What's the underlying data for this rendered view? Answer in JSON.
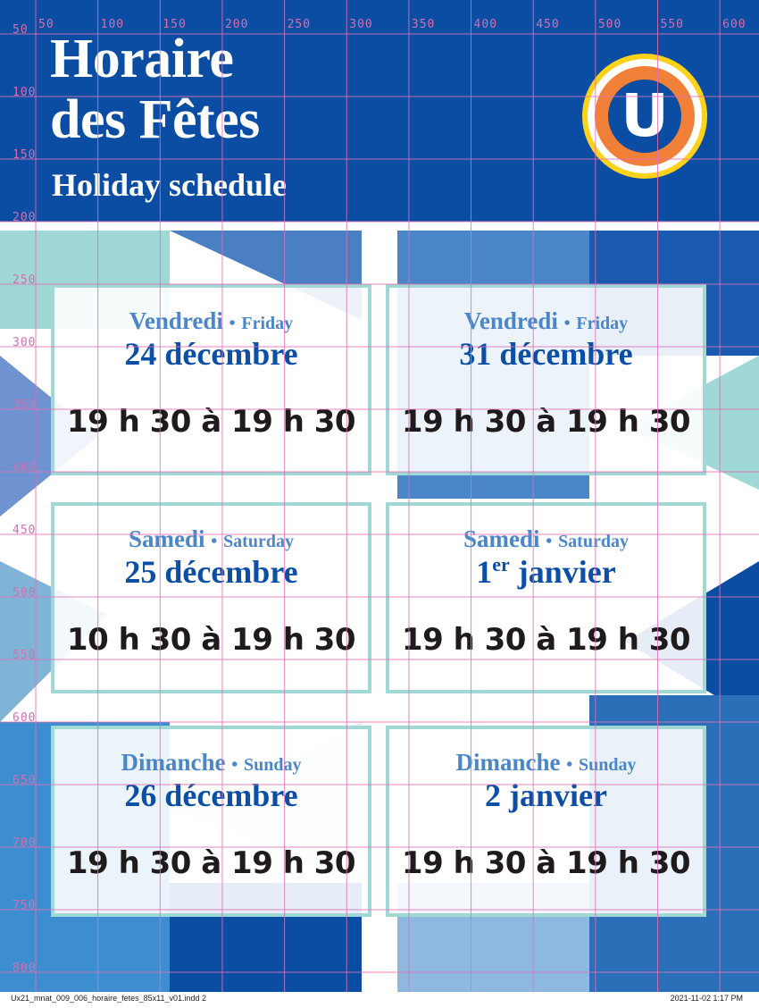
{
  "header": {
    "title_line1": "Horaire",
    "title_line2": "des Fêtes",
    "subtitle": "Holiday schedule",
    "logo_letter": "U"
  },
  "cards": [
    {
      "day_fr": "Vendredi",
      "day_en": "Friday",
      "date": "24 décembre",
      "date_sup": "",
      "time": "19 h 30 à 19 h 30"
    },
    {
      "day_fr": "Vendredi",
      "day_en": "Friday",
      "date": "31 décembre",
      "date_sup": "",
      "time": "19 h 30 à 19 h 30"
    },
    {
      "day_fr": "Samedi",
      "day_en": "Saturday",
      "date": "25 décembre",
      "date_sup": "",
      "time": "10 h 30 à 19 h 30"
    },
    {
      "day_fr": "Samedi",
      "day_en": "Saturday",
      "date_prefix": "1",
      "date_sup": "er",
      "date": " janvier",
      "time": "19 h 30 à 19 h 30"
    },
    {
      "day_fr": "Dimanche",
      "day_en": "Sunday",
      "date": "26 décembre",
      "date_sup": "",
      "time": "19 h 30 à 19 h 30"
    },
    {
      "day_fr": "Dimanche",
      "day_en": "Sunday",
      "date": "2 janvier",
      "date_sup": "",
      "time": "19 h 30 à 19 h 30"
    }
  ],
  "separator": "•",
  "rulers": {
    "top": [
      "50",
      "100",
      "150",
      "200",
      "250",
      "300",
      "350",
      "400",
      "450",
      "500",
      "550",
      "600"
    ],
    "left": [
      "50",
      "100",
      "150",
      "200",
      "250",
      "300",
      "350",
      "400",
      "450",
      "500",
      "550",
      "600",
      "650",
      "700",
      "750",
      "800"
    ]
  },
  "slug": {
    "filename": "Ux21_mnat_009_006_horaire_fetes_85x11_v01.indd  2",
    "timestamp": "2021-11-02   1:17 PM"
  },
  "colors": {
    "header_blue": "#0a4da3",
    "day_blue": "#4a86c8",
    "date_blue": "#0d4ea6",
    "card_border": "#9fd8d5",
    "logo_yellow": "#ffd21a",
    "logo_orange": "#f08038",
    "guide_pink": "#e070b8"
  }
}
